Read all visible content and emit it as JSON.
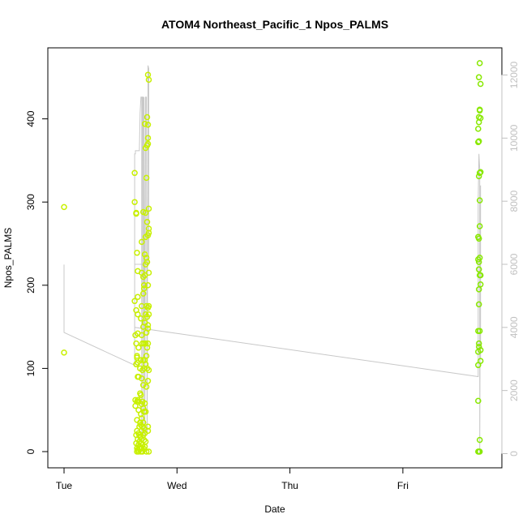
{
  "chart_data": {
    "type": "scatter",
    "title": "ATOM4 Northeast_Pacific_1 Npos_PALMS",
    "xlabel": "Date",
    "ylabel": "Npos_PALMS",
    "x_axis": {
      "type": "date",
      "range": [
        "Tue 00:00",
        "Fri 18:00"
      ],
      "ticks": [
        {
          "value": "Tue 00:00",
          "label": "Tue"
        },
        {
          "value": "Wed 00:00",
          "label": "Wed"
        },
        {
          "value": "Thu 00:00",
          "label": "Thu"
        },
        {
          "value": "Fri 00:00",
          "label": "Fri"
        }
      ]
    },
    "y_axis": {
      "range": [
        0,
        470
      ],
      "ticks": [
        0,
        100,
        200,
        300,
        400
      ]
    },
    "y2_axis": {
      "range": [
        0,
        12000
      ],
      "ticks": [
        0,
        2000,
        4000,
        6000,
        8000,
        10000,
        12000
      ]
    },
    "colors": {
      "points_early": "#c8f000",
      "points_late": "#88e800",
      "line": "#c8c8c8",
      "frame": "#000000",
      "right_axis": "#c0c0c0"
    },
    "series": [
      {
        "kind": "points",
        "axis": "left",
        "color_key": "points_early",
        "points": [
          [
            "Tue 00:00",
            294
          ],
          [
            "Tue 00:00",
            119
          ],
          [
            "Tue 15:00",
            335
          ],
          [
            "Tue 15:00",
            181
          ],
          [
            "Tue 15:00",
            300
          ],
          [
            "Tue 15:10",
            140
          ],
          [
            "Tue 15:10",
            62
          ],
          [
            "Tue 15:10",
            55
          ],
          [
            "Tue 15:20",
            287
          ],
          [
            "Tue 15:20",
            286
          ],
          [
            "Tue 15:20",
            170
          ],
          [
            "Tue 15:20",
            130
          ],
          [
            "Tue 15:20",
            105
          ],
          [
            "Tue 15:20",
            20
          ],
          [
            "Tue 15:20",
            10
          ],
          [
            "Tue 15:30",
            239
          ],
          [
            "Tue 15:30",
            115
          ],
          [
            "Tue 15:30",
            113
          ],
          [
            "Tue 15:30",
            60
          ],
          [
            "Tue 15:30",
            38
          ],
          [
            "Tue 15:30",
            25
          ],
          [
            "Tue 15:30",
            4
          ],
          [
            "Tue 15:30",
            0
          ],
          [
            "Tue 15:40",
            217
          ],
          [
            "Tue 15:40",
            186
          ],
          [
            "Tue 15:40",
            165
          ],
          [
            "Tue 15:40",
            142
          ],
          [
            "Tue 15:40",
            107
          ],
          [
            "Tue 15:40",
            90
          ],
          [
            "Tue 15:40",
            62
          ],
          [
            "Tue 15:40",
            15
          ],
          [
            "Tue 15:40",
            2
          ],
          [
            "Tue 15:50",
            125
          ],
          [
            "Tue 15:50",
            90
          ],
          [
            "Tue 15:50",
            60
          ],
          [
            "Tue 15:50",
            50
          ],
          [
            "Tue 15:50",
            22
          ],
          [
            "Tue 15:50",
            8
          ],
          [
            "Tue 15:50",
            0
          ],
          [
            "Tue 16:00",
            30
          ],
          [
            "Tue 16:00",
            20
          ],
          [
            "Tue 16:00",
            12
          ],
          [
            "Tue 16:00",
            5
          ],
          [
            "Tue 16:10",
            100
          ],
          [
            "Tue 16:10",
            70
          ],
          [
            "Tue 16:10",
            35
          ],
          [
            "Tue 16:10",
            18
          ],
          [
            "Tue 16:10",
            3
          ],
          [
            "Tue 16:20",
            160
          ],
          [
            "Tue 16:20",
            110
          ],
          [
            "Tue 16:20",
            68
          ],
          [
            "Tue 16:20",
            45
          ],
          [
            "Tue 16:20",
            32
          ],
          [
            "Tue 16:20",
            10
          ],
          [
            "Tue 16:20",
            0
          ],
          [
            "Tue 16:30",
            252
          ],
          [
            "Tue 16:30",
            215
          ],
          [
            "Tue 16:30",
            175
          ],
          [
            "Tue 16:30",
            140
          ],
          [
            "Tue 16:30",
            88
          ],
          [
            "Tue 16:30",
            57
          ],
          [
            "Tue 16:30",
            40
          ],
          [
            "Tue 16:30",
            25
          ],
          [
            "Tue 16:30",
            15
          ],
          [
            "Tue 16:30",
            5
          ],
          [
            "Tue 16:40",
            130
          ],
          [
            "Tue 16:40",
            98
          ],
          [
            "Tue 16:40",
            60
          ],
          [
            "Tue 16:40",
            30
          ],
          [
            "Tue 16:40",
            8
          ],
          [
            "Tue 16:40",
            0
          ],
          [
            "Tue 16:50",
            288
          ],
          [
            "Tue 16:50",
            210
          ],
          [
            "Tue 16:50",
            190
          ],
          [
            "Tue 16:50",
            150
          ],
          [
            "Tue 16:50",
            110
          ],
          [
            "Tue 16:50",
            80
          ],
          [
            "Tue 16:50",
            52
          ],
          [
            "Tue 16:50",
            35
          ],
          [
            "Tue 16:50",
            20
          ],
          [
            "Tue 17:00",
            200
          ],
          [
            "Tue 17:00",
            196
          ],
          [
            "Tue 17:00",
            130
          ],
          [
            "Tue 17:00",
            100
          ],
          [
            "Tue 17:00",
            48
          ],
          [
            "Tue 17:00",
            28
          ],
          [
            "Tue 17:00",
            14
          ],
          [
            "Tue 17:00",
            3
          ],
          [
            "Tue 17:10",
            394
          ],
          [
            "Tue 17:10",
            237
          ],
          [
            "Tue 17:10",
            212
          ],
          [
            "Tue 17:10",
            155
          ],
          [
            "Tue 17:10",
            110
          ],
          [
            "Tue 17:10",
            58
          ],
          [
            "Tue 17:10",
            22
          ],
          [
            "Tue 17:10",
            6
          ],
          [
            "Tue 17:20",
            365
          ],
          [
            "Tue 17:20",
            287
          ],
          [
            "Tue 17:20",
            258
          ],
          [
            "Tue 17:20",
            225
          ],
          [
            "Tue 17:20",
            165
          ],
          [
            "Tue 17:20",
            130
          ],
          [
            "Tue 17:20",
            105
          ],
          [
            "Tue 17:20",
            48
          ],
          [
            "Tue 17:20",
            12
          ],
          [
            "Tue 17:30",
            329
          ],
          [
            "Tue 17:30",
            233
          ],
          [
            "Tue 17:30",
            175
          ],
          [
            "Tue 17:30",
            143
          ],
          [
            "Tue 17:30",
            115
          ],
          [
            "Tue 17:30",
            78
          ],
          [
            "Tue 17:30",
            0
          ],
          [
            "Tue 17:40",
            402
          ],
          [
            "Tue 17:40",
            368
          ],
          [
            "Tue 17:40",
            276
          ],
          [
            "Tue 17:40",
            228
          ],
          [
            "Tue 17:40",
            162
          ],
          [
            "Tue 17:40",
            125
          ],
          [
            "Tue 17:40",
            100
          ],
          [
            "Tue 17:50",
            453
          ],
          [
            "Tue 17:50",
            393
          ],
          [
            "Tue 17:50",
            377
          ],
          [
            "Tue 17:50",
            370
          ],
          [
            "Tue 17:50",
            260
          ],
          [
            "Tue 17:50",
            200
          ],
          [
            "Tue 17:50",
            173
          ],
          [
            "Tue 17:50",
            152
          ],
          [
            "Tue 17:50",
            148
          ],
          [
            "Tue 17:50",
            130
          ],
          [
            "Tue 17:50",
            85
          ],
          [
            "Tue 17:50",
            30
          ],
          [
            "Tue 17:50",
            25
          ],
          [
            "Tue 18:00",
            447
          ],
          [
            "Tue 18:00",
            292
          ],
          [
            "Tue 18:00",
            268
          ],
          [
            "Tue 18:00",
            263
          ],
          [
            "Tue 18:00",
            215
          ],
          [
            "Tue 18:00",
            175
          ],
          [
            "Tue 18:00",
            165
          ],
          [
            "Tue 18:00",
            98
          ],
          [
            "Tue 18:00",
            0
          ]
        ]
      },
      {
        "kind": "points",
        "axis": "left",
        "color_key": "points_late",
        "points": [
          [
            "Fri 16:00",
            388
          ],
          [
            "Fri 16:00",
            372
          ],
          [
            "Fri 16:00",
            258
          ],
          [
            "Fri 16:00",
            231
          ],
          [
            "Fri 16:00",
            145
          ],
          [
            "Fri 16:00",
            120
          ],
          [
            "Fri 16:00",
            104
          ],
          [
            "Fri 16:00",
            61
          ],
          [
            "Fri 16:00",
            0
          ],
          [
            "Fri 16:10",
            450
          ],
          [
            "Fri 16:10",
            402
          ],
          [
            "Fri 16:10",
            396
          ],
          [
            "Fri 16:10",
            373
          ],
          [
            "Fri 16:10",
            331
          ],
          [
            "Fri 16:10",
            256
          ],
          [
            "Fri 16:10",
            228
          ],
          [
            "Fri 16:10",
            219
          ],
          [
            "Fri 16:10",
            195
          ],
          [
            "Fri 16:10",
            177
          ],
          [
            "Fri 16:10",
            130
          ],
          [
            "Fri 16:10",
            126
          ],
          [
            "Fri 16:10",
            0
          ],
          [
            "Fri 16:20",
            467
          ],
          [
            "Fri 16:20",
            411
          ],
          [
            "Fri 16:20",
            410
          ],
          [
            "Fri 16:20",
            335
          ],
          [
            "Fri 16:20",
            302
          ],
          [
            "Fri 16:20",
            271
          ],
          [
            "Fri 16:20",
            233
          ],
          [
            "Fri 16:20",
            212
          ],
          [
            "Fri 16:20",
            145
          ],
          [
            "Fri 16:20",
            14
          ],
          [
            "Fri 16:20",
            0
          ],
          [
            "Fri 16:30",
            442
          ],
          [
            "Fri 16:30",
            401
          ],
          [
            "Fri 16:30",
            336
          ],
          [
            "Fri 16:30",
            212
          ],
          [
            "Fri 16:30",
            201
          ],
          [
            "Fri 16:30",
            122
          ],
          [
            "Fri 16:30",
            109
          ]
        ]
      },
      {
        "kind": "line",
        "axis": "right",
        "color_key": "line",
        "points": [
          [
            "Tue 00:00",
            5990
          ],
          [
            "Tue 00:00",
            3840
          ],
          [
            "Tue 15:00",
            2800
          ],
          [
            "Tue 15:00",
            9500
          ],
          [
            "Tue 15:10",
            9500
          ],
          [
            "Tue 15:10",
            9600
          ],
          [
            "Tue 16:00",
            9600
          ],
          [
            "Tue 16:10",
            10800
          ],
          [
            "Tue 16:20",
            11300
          ],
          [
            "Tue 16:30",
            11300
          ],
          [
            "Tue 16:30",
            500
          ],
          [
            "Tue 16:40",
            11300
          ],
          [
            "Tue 16:50",
            11300
          ],
          [
            "Tue 16:50",
            0
          ],
          [
            "Tue 17:00",
            11300
          ],
          [
            "Tue 17:10",
            500
          ],
          [
            "Tue 17:20",
            11300
          ],
          [
            "Tue 17:30",
            11300
          ],
          [
            "Tue 17:40",
            600
          ],
          [
            "Tue 17:50",
            12300
          ],
          [
            "Tue 18:00",
            12200
          ],
          [
            "Tue 18:00",
            6000
          ],
          [
            "Tue 15:00",
            6000
          ],
          [
            "Tue 15:00",
            4000
          ],
          [
            "Fri 16:00",
            2440
          ],
          [
            "Fri 16:00",
            8000
          ],
          [
            "Fri 16:10",
            9500
          ],
          [
            "Fri 16:20",
            9000
          ],
          [
            "Fri 16:20",
            0
          ],
          [
            "Fri 16:30",
            8500
          ],
          [
            "Fri 16:30",
            3000
          ]
        ]
      }
    ]
  }
}
